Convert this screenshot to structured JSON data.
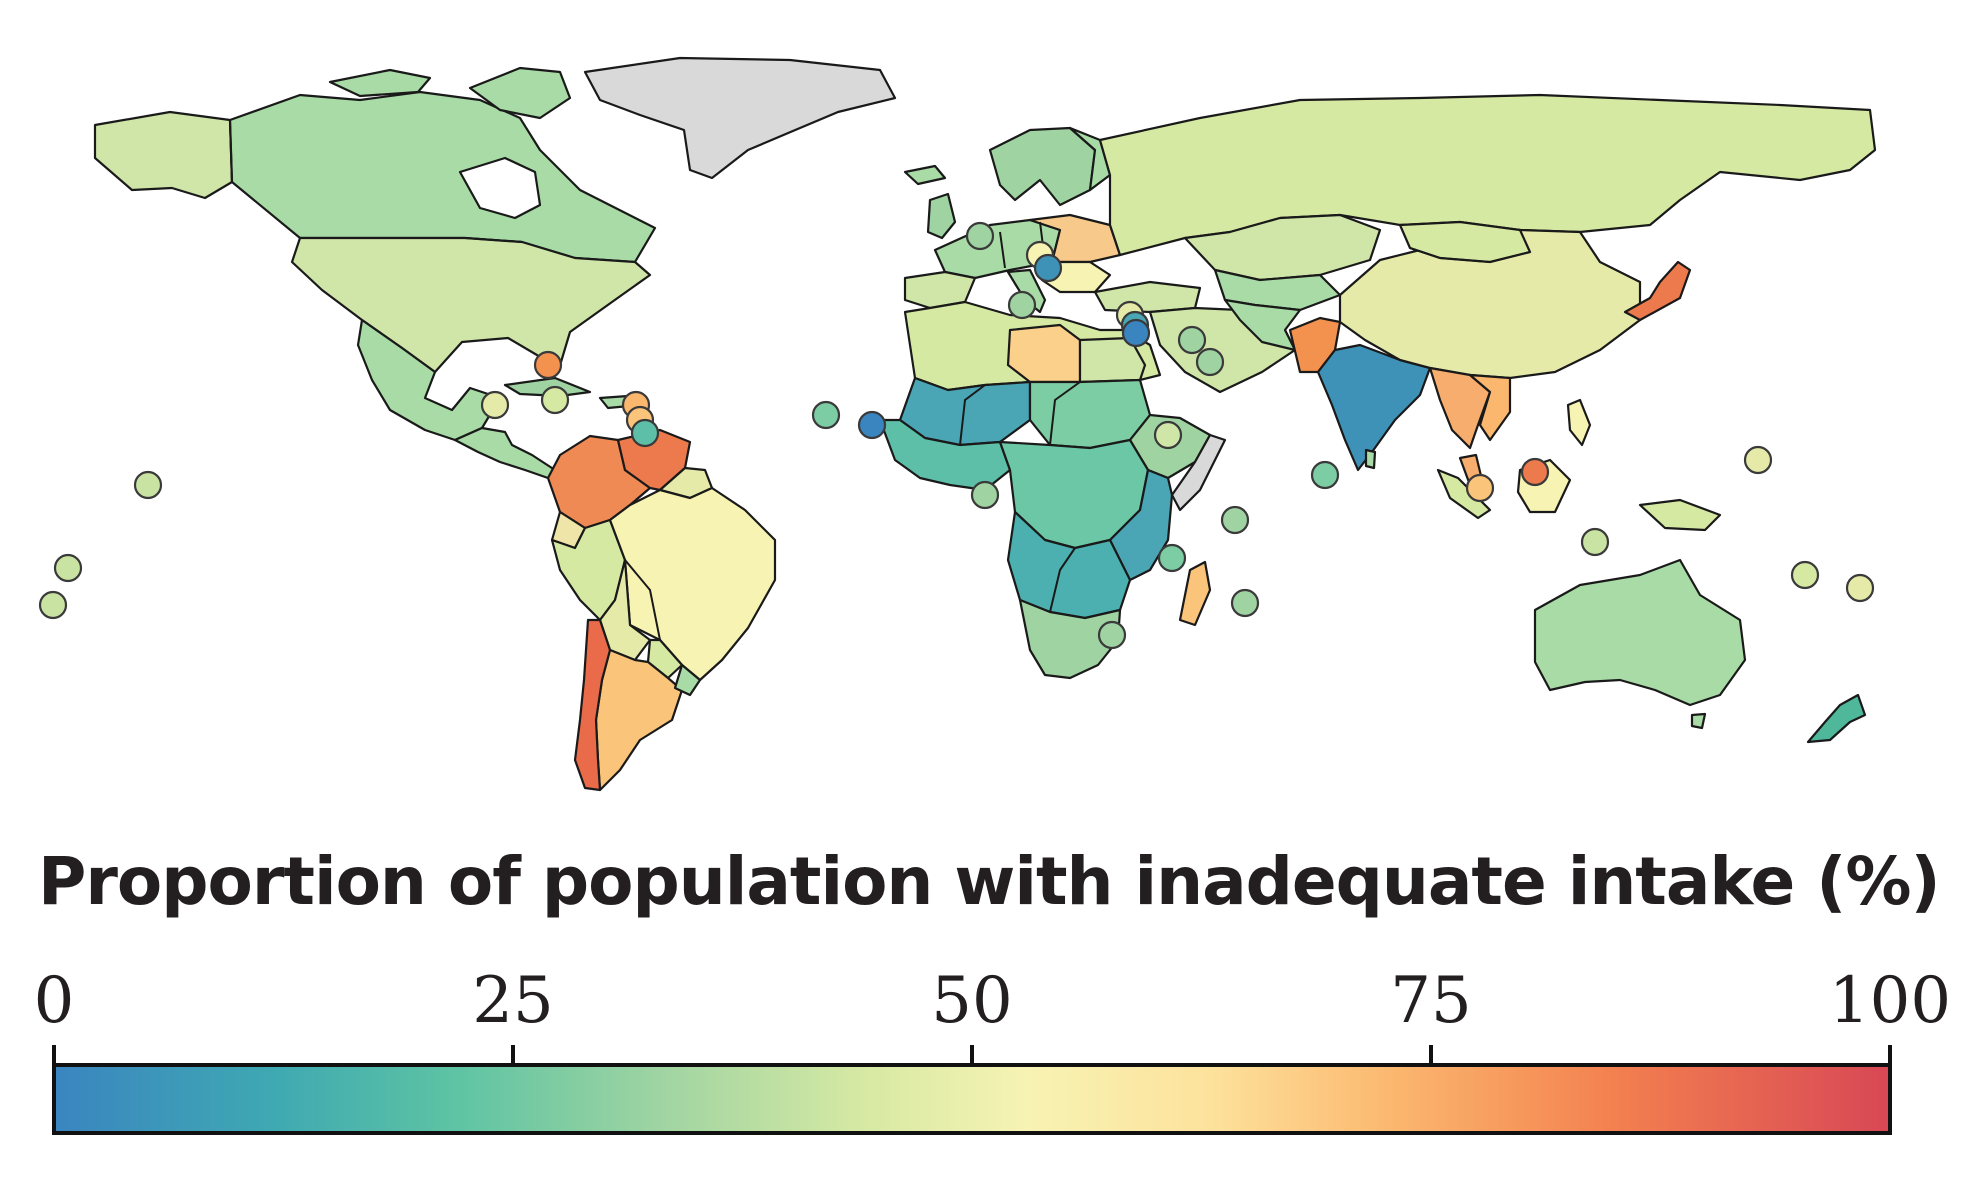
{
  "legend": {
    "title": "Proportion of population with inadequate intake (%)",
    "ticks": [
      {
        "value": 0,
        "label": "0"
      },
      {
        "value": 25,
        "label": "25"
      },
      {
        "value": 50,
        "label": "50"
      },
      {
        "value": 75,
        "label": "75"
      },
      {
        "value": 100,
        "label": "100"
      }
    ],
    "range": [
      0,
      100
    ],
    "gradient_stops": [
      {
        "value": 0,
        "color": "#3a85c0"
      },
      {
        "value": 12,
        "color": "#3fa9b2"
      },
      {
        "value": 22,
        "color": "#5ec4a3"
      },
      {
        "value": 33,
        "color": "#9fd4a2"
      },
      {
        "value": 44,
        "color": "#d6e9a3"
      },
      {
        "value": 53,
        "color": "#f7f3b3"
      },
      {
        "value": 63,
        "color": "#fde29c"
      },
      {
        "value": 73,
        "color": "#fbb76e"
      },
      {
        "value": 85,
        "color": "#f3804f"
      },
      {
        "value": 100,
        "color": "#d84755"
      }
    ]
  },
  "colors": {
    "no_data": "#d9d9d9",
    "border": "#1a1a1a",
    "background": "#ffffff",
    "title_text": "#231f20"
  }
}
